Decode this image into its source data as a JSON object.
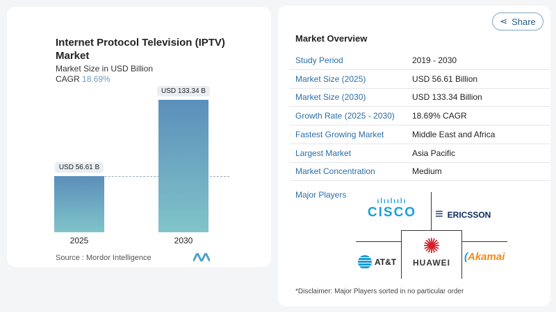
{
  "chart": {
    "title": "Internet Protocol Television (IPTV) Market",
    "subtitle": "Market Size in USD Billion",
    "cagr_label": "CAGR",
    "cagr_value": "18.69%",
    "source": "Source :  Mordor Intelligence"
  },
  "chart_data": {
    "type": "bar",
    "categories": [
      "2025",
      "2030"
    ],
    "values": [
      56.61,
      133.34
    ],
    "data_labels": [
      "USD 56.61 B",
      "USD 133.34 B"
    ],
    "title": "Internet Protocol Television (IPTV) Market",
    "ylabel": "Market Size in USD Billion",
    "colors": [
      "#5b8fba",
      "#80c4c9"
    ]
  },
  "share": {
    "label": "Share",
    "icon": "share-icon"
  },
  "overview": {
    "title": "Market Overview",
    "rows": [
      {
        "label": "Study Period",
        "value": "2019 - 2030"
      },
      {
        "label": "Market Size (2025)",
        "value": "USD 56.61 Billion"
      },
      {
        "label": "Market Size (2030)",
        "value": "USD 133.34 Billion"
      },
      {
        "label": "Growth Rate (2025 - 2030)",
        "value": "18.69% CAGR"
      },
      {
        "label": "Fastest Growing Market",
        "value": "Middle East and Africa"
      },
      {
        "label": "Largest Market",
        "value": "Asia Pacific"
      },
      {
        "label": "Market Concentration",
        "value": "Medium"
      }
    ],
    "players_label": "Major Players",
    "players": [
      "CISCO",
      "ERICSSON",
      "AT&T",
      "HUAWEI",
      "Akamai"
    ],
    "disclaimer": "*Disclaimer: Major Players sorted in no particular order"
  }
}
